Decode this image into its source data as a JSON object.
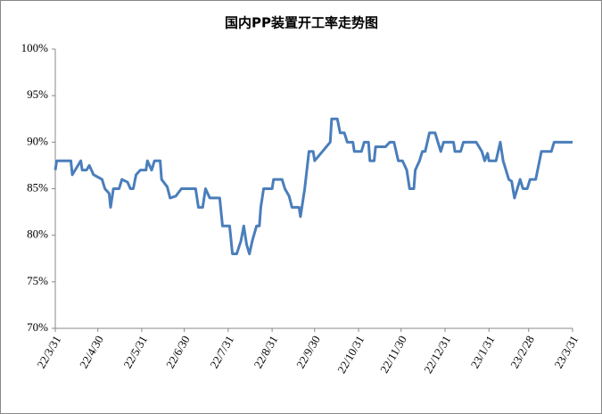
{
  "chart_data": {
    "type": "line",
    "title": "国内PP装置开工率走势图",
    "x": [
      "22/3/31",
      "22/4/1",
      "22/4/11",
      "22/4/12",
      "22/4/14",
      "22/4/18",
      "22/4/19",
      "22/4/22",
      "22/4/24",
      "22/4/27",
      "22/5/3",
      "22/5/5",
      "22/5/8",
      "22/5/9",
      "22/5/11",
      "22/5/15",
      "22/5/17",
      "22/5/21",
      "22/5/23",
      "22/5/25",
      "22/5/27",
      "22/5/30",
      "22/6/3",
      "22/6/4",
      "22/6/7",
      "22/6/9",
      "22/6/13",
      "22/6/14",
      "22/6/18",
      "22/6/20",
      "22/6/24",
      "22/6/28",
      "22/7/8",
      "22/7/10",
      "22/7/13",
      "22/7/15",
      "22/7/18",
      "22/7/25",
      "22/7/27",
      "22/8/1",
      "22/8/3",
      "22/8/6",
      "22/8/9",
      "22/8/11",
      "22/8/13",
      "22/8/15",
      "22/8/17",
      "22/8/20",
      "22/8/22",
      "22/8/23",
      "22/8/25",
      "22/8/31",
      "22/9/1",
      "22/9/7",
      "22/9/9",
      "22/9/12",
      "22/9/14",
      "22/9/19",
      "22/9/20",
      "22/9/23",
      "22/9/26",
      "22/9/29",
      "22/9/30",
      "22/10/11",
      "22/10/12",
      "22/10/16",
      "22/10/18",
      "22/10/21",
      "22/10/23",
      "22/10/27",
      "22/10/28",
      "22/11/2",
      "22/11/4",
      "22/11/7",
      "22/11/8",
      "22/11/11",
      "22/11/12",
      "22/11/19",
      "22/11/22",
      "22/11/25",
      "22/11/28",
      "22/12/1",
      "22/12/4",
      "22/12/6",
      "22/12/9",
      "22/12/10",
      "22/12/13",
      "22/12/15",
      "22/12/17",
      "22/12/20",
      "22/12/24",
      "22/12/28",
      "22/12/30",
      "23/1/6",
      "23/1/7",
      "23/1/11",
      "23/1/13",
      "23/1/22",
      "23/1/26",
      "23/1/28",
      "23/1/30",
      "23/1/31",
      "23/2/5",
      "23/2/8",
      "23/2/10",
      "23/2/14",
      "23/2/16",
      "23/2/18",
      "23/2/20",
      "23/2/22",
      "23/2/24",
      "23/2/27",
      "23/3/1",
      "23/3/5",
      "23/3/9",
      "23/3/16",
      "23/3/18",
      "23/3/31"
    ],
    "series": [
      {
        "name": "开工率",
        "color": "#4a7ebb",
        "values": [
          87,
          88,
          88,
          86.5,
          87,
          88,
          87,
          87,
          87.5,
          86.5,
          86,
          85,
          84.5,
          83,
          85,
          85,
          86,
          85.7,
          85,
          85,
          86.5,
          87,
          87,
          88,
          87,
          88,
          88,
          86,
          85.2,
          84,
          84.2,
          85,
          85,
          83,
          83,
          85,
          84,
          84,
          81,
          81,
          78,
          78,
          79.4,
          81,
          79,
          78,
          79.4,
          81,
          81,
          83,
          85,
          85,
          86,
          86,
          85,
          84.2,
          83,
          83,
          82,
          85,
          89,
          89,
          88,
          90,
          92.5,
          92.5,
          91,
          91,
          90,
          90,
          89,
          89,
          90,
          90,
          88,
          88,
          89.5,
          89.5,
          90,
          90,
          88,
          88,
          87,
          85,
          85,
          87,
          88,
          89,
          89,
          91,
          91,
          89,
          90,
          90,
          89,
          89,
          90,
          90,
          89,
          88,
          88.8,
          88,
          88,
          90,
          88,
          86,
          85.8,
          84,
          85,
          86,
          85,
          85,
          86,
          86,
          89,
          89,
          90,
          90
        ]
      }
    ],
    "xlim": [
      "22/3/31",
      "23/3/31"
    ],
    "xticks": [
      "22/3/31",
      "22/4/30",
      "22/5/31",
      "22/6/30",
      "22/7/31",
      "22/8/31",
      "22/9/30",
      "22/10/31",
      "22/11/30",
      "22/12/31",
      "23/1/31",
      "23/2/28",
      "23/3/31"
    ],
    "ylim": [
      70,
      100
    ],
    "yticks": [
      {
        "value": 70,
        "label": "70%"
      },
      {
        "value": 75,
        "label": "75%"
      },
      {
        "value": 80,
        "label": "80%"
      },
      {
        "value": 85,
        "label": "85%"
      },
      {
        "value": 90,
        "label": "90%"
      },
      {
        "value": 95,
        "label": "95%"
      },
      {
        "value": 100,
        "label": "100%"
      }
    ],
    "grid": false
  }
}
